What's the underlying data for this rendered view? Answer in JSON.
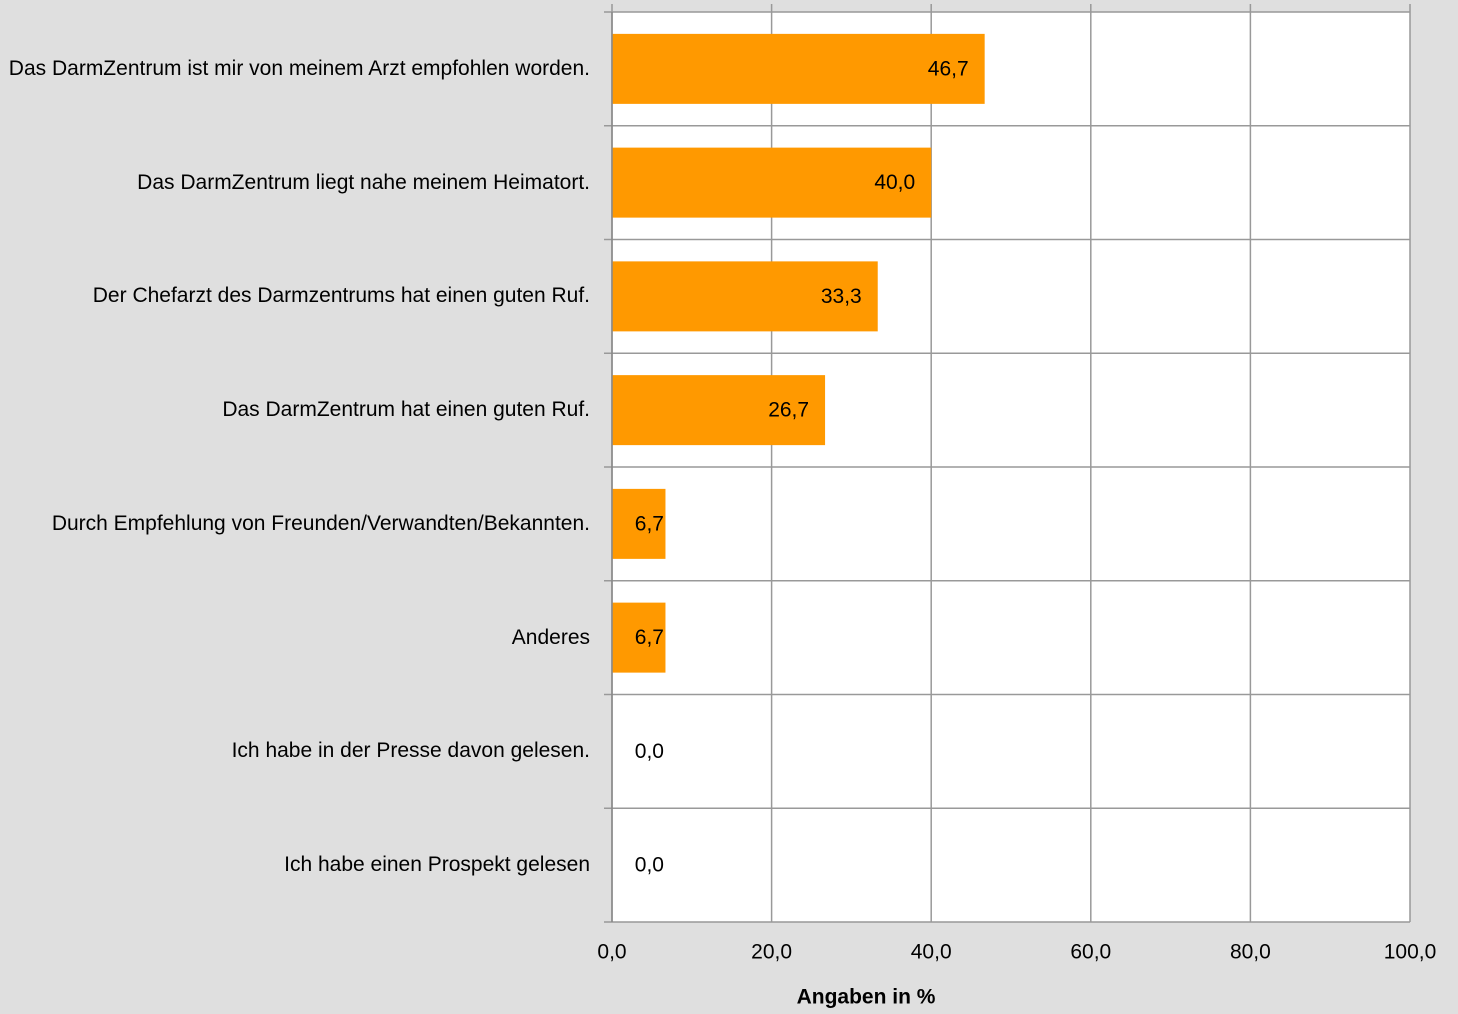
{
  "chart_data": {
    "type": "barh",
    "categories": [
      "Das DarmZentrum ist mir von meinem Arzt empfohlen worden.",
      "Das DarmZentrum liegt nahe meinem Heimatort.",
      "Der Chefarzt des Darmzentrums hat einen guten Ruf.",
      "Das DarmZentrum hat einen guten Ruf.",
      "Durch Empfehlung von Freunden/Verwandten/Bekannten.",
      "Anderes",
      "Ich habe in der Presse davon gelesen.",
      "Ich habe einen Prospekt gelesen"
    ],
    "values": [
      46.7,
      40.0,
      33.3,
      26.7,
      6.7,
      6.7,
      0.0,
      0.0
    ],
    "value_labels": [
      "46,7",
      "40,0",
      "33,3",
      "26,7",
      "6,7",
      "6,7",
      "0,0",
      "0,0"
    ],
    "color": "#ff9900",
    "xlim": [
      0,
      100
    ],
    "xticks": [
      {
        "value": 0,
        "label": "0,0"
      },
      {
        "value": 20,
        "label": "20,0"
      },
      {
        "value": 40,
        "label": "40,0"
      },
      {
        "value": 60,
        "label": "60,0"
      },
      {
        "value": 80,
        "label": "80,0"
      },
      {
        "value": 100,
        "label": "100,0"
      }
    ],
    "x_label": "Angaben in %",
    "grid": true
  }
}
